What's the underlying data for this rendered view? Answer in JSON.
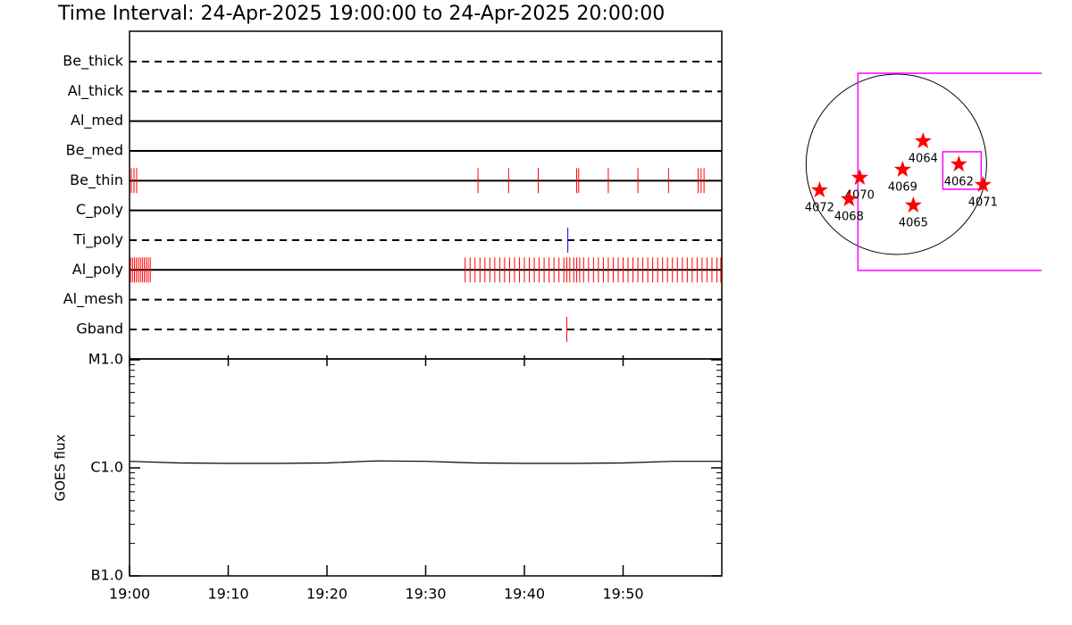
{
  "chart_data": [
    {
      "type": "event",
      "title": "Time Interval: 24-Apr-2025 19:00:00 to 24-Apr-2025 20:00:00",
      "xlim": [
        0,
        60
      ],
      "filters": [
        {
          "name": "Be_thick",
          "style": "dashed",
          "color": "#ff0000",
          "times": []
        },
        {
          "name": "Al_thick",
          "style": "dashed",
          "color": "#ff0000",
          "times": []
        },
        {
          "name": "Al_med",
          "style": "solid",
          "color": "#ff0000",
          "times": []
        },
        {
          "name": "Be_med",
          "style": "solid",
          "color": "#ff0000",
          "times": []
        },
        {
          "name": "Be_thin",
          "style": "solid",
          "color": "#ff0000",
          "times": [
            0.18,
            0.45,
            0.72,
            35.3,
            38.4,
            41.4,
            45.3,
            45.5,
            48.5,
            51.5,
            54.6,
            57.6,
            57.9,
            58.2
          ]
        },
        {
          "name": "C_poly",
          "style": "solid",
          "color": "#ff0000",
          "times": []
        },
        {
          "name": "Ti_poly",
          "style": "dashed",
          "color": "#0000ff",
          "times": [
            44.4
          ]
        },
        {
          "name": "Al_poly",
          "style": "solid",
          "color": "#ff0000",
          "times": [
            0.1,
            0.3,
            0.5,
            0.7,
            0.9,
            1.1,
            1.3,
            1.5,
            1.7,
            1.9,
            2.1,
            34.0,
            34.5,
            35.0,
            35.5,
            36.0,
            36.5,
            37.0,
            37.5,
            38.0,
            38.5,
            39.0,
            39.5,
            40.0,
            40.5,
            41.0,
            41.5,
            42.0,
            42.5,
            43.0,
            43.5,
            44.0,
            44.3,
            44.6,
            45.0,
            45.3,
            45.6,
            46.0,
            46.5,
            47.0,
            47.5,
            48.0,
            48.5,
            49.0,
            49.5,
            50.0,
            50.5,
            51.0,
            51.5,
            52.0,
            52.5,
            53.0,
            53.5,
            54.0,
            54.5,
            55.0,
            55.5,
            56.0,
            56.5,
            57.0,
            57.5,
            58.0,
            58.5,
            59.0,
            59.5,
            59.9
          ]
        },
        {
          "name": "Al_mesh",
          "style": "dashed",
          "color": "#ff0000",
          "times": []
        },
        {
          "name": "Gband",
          "style": "dashed",
          "color": "#ff0000",
          "times": [
            44.3
          ]
        }
      ]
    },
    {
      "type": "line",
      "ylabel": "GOES flux",
      "log": true,
      "color": "#000000",
      "x": [
        0,
        5,
        10,
        15,
        20,
        25,
        30,
        35,
        40,
        45,
        50,
        55,
        60
      ],
      "values": [
        1.15e-06,
        1.11e-06,
        1.1e-06,
        1.1e-06,
        1.11e-06,
        1.16e-06,
        1.15e-06,
        1.11e-06,
        1.1e-06,
        1.1e-06,
        1.11e-06,
        1.15e-06,
        1.15e-06
      ],
      "xlim": [
        0,
        60
      ],
      "xticks": [
        {
          "value": 0,
          "label": "19:00"
        },
        {
          "value": 10,
          "label": "19:10"
        },
        {
          "value": 20,
          "label": "19:20"
        },
        {
          "value": 30,
          "label": "19:30"
        },
        {
          "value": 40,
          "label": "19:40"
        },
        {
          "value": 50,
          "label": "19:50"
        }
      ],
      "ylim": [
        1e-07,
        1e-05
      ],
      "yticks": [
        {
          "value": 1e-07,
          "label": "B1.0"
        },
        {
          "value": 1e-06,
          "label": "C1.0"
        },
        {
          "value": 1e-05,
          "label": "M1.0"
        }
      ],
      "yminorticks": [
        2e-07,
        3e-07,
        4e-07,
        5e-07,
        6e-07,
        7e-07,
        8e-07,
        9e-07,
        2e-06,
        3e-06,
        4e-06,
        5e-06,
        6e-06,
        7e-06,
        8e-06,
        9e-06
      ]
    },
    {
      "type": "map",
      "xlim": [
        -1000,
        1520
      ],
      "ylim": [
        -1200,
        1200
      ],
      "disk_radius": 950,
      "color": "#ff0000",
      "points": [
        {
          "label": "4064",
          "x": 282,
          "y": 244
        },
        {
          "label": "4062",
          "x": 658,
          "y": 0
        },
        {
          "label": "4071",
          "x": 912,
          "y": -216
        },
        {
          "label": "4069",
          "x": 66,
          "y": -56
        },
        {
          "label": "4070",
          "x": -385,
          "y": -141
        },
        {
          "label": "4068",
          "x": -498,
          "y": -367
        },
        {
          "label": "4072",
          "x": -808,
          "y": -273
        },
        {
          "label": "4065",
          "x": 179,
          "y": -432
        }
      ],
      "boxes": [
        {
          "x": [
            -404,
            1550
          ],
          "y": [
            -1118,
            959
          ],
          "color": "#ff00ff"
        },
        {
          "x": [
            489,
            893
          ],
          "y": [
            -263,
            132
          ],
          "color": "#ff00ff"
        }
      ]
    }
  ]
}
